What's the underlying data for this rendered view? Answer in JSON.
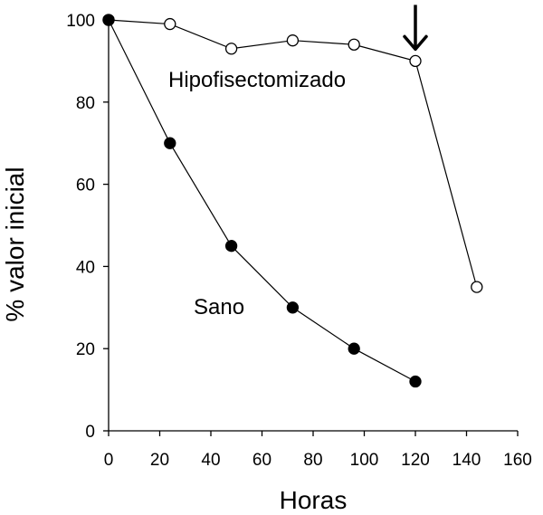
{
  "chart_data": {
    "type": "line",
    "xlabel": "Horas",
    "ylabel": "% valor inicial",
    "xlim": [
      0,
      160
    ],
    "ylim": [
      0,
      100
    ],
    "xticks": [
      0,
      20,
      40,
      60,
      80,
      100,
      120,
      140,
      160
    ],
    "yticks": [
      0,
      20,
      40,
      60,
      80,
      100
    ],
    "grid": false,
    "series": [
      {
        "name": "Hipofisectomizado",
        "marker": "open-circle",
        "color": "#000000",
        "x": [
          0,
          24,
          48,
          72,
          96,
          120,
          144
        ],
        "y": [
          100,
          99,
          93,
          95,
          94,
          90,
          35
        ]
      },
      {
        "name": "Sano",
        "marker": "filled-circle",
        "color": "#000000",
        "x": [
          0,
          24,
          48,
          72,
          96,
          120
        ],
        "y": [
          100,
          70,
          45,
          30,
          20,
          12
        ]
      }
    ],
    "annotations": [
      {
        "type": "arrow",
        "direction": "down",
        "x": 120,
        "y": 90
      }
    ]
  }
}
